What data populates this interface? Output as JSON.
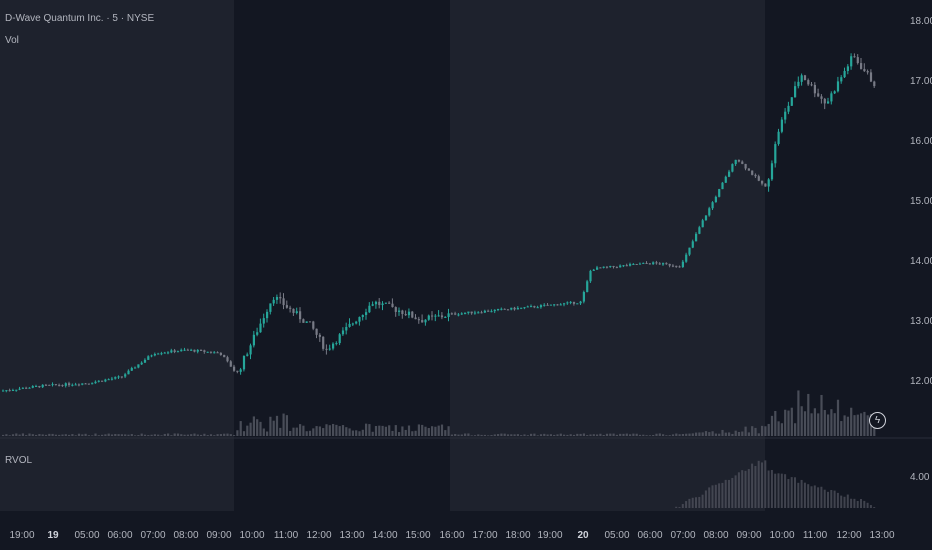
{
  "header": {
    "title": "D-Wave Quantum Inc. · 5 · NYSE",
    "volume_label": "Vol",
    "rvol_label": "RVOL",
    "alert_icon": "lightning-icon"
  },
  "colors": {
    "background": "#131722",
    "extended_session": "#1e222d",
    "up": "#26a69a",
    "down": "#787b86",
    "volume": "#50535e",
    "text": "#b2b5be"
  },
  "chart_data": {
    "type": "candlestick",
    "price_axis": {
      "ticks": [
        "18.00",
        "17.00",
        "16.00",
        "15.00",
        "14.00",
        "13.00",
        "12.00"
      ]
    },
    "rvol_axis": {
      "ticks": [
        "4.00"
      ]
    },
    "time_axis": {
      "ticks": [
        "19:00",
        "19",
        "05:00",
        "06:00",
        "07:00",
        "08:00",
        "09:00",
        "10:00",
        "11:00",
        "12:00",
        "13:00",
        "14:00",
        "15:00",
        "16:00",
        "17:00",
        "18:00",
        "19:00",
        "20",
        "05:00",
        "06:00",
        "07:00",
        "08:00",
        "09:00",
        "10:00",
        "11:00",
        "12:00",
        "13:00"
      ]
    },
    "sessions": [
      {
        "type": "extended",
        "from": "19:00",
        "to": "09:30"
      },
      {
        "type": "regular",
        "from": "09:30",
        "to": "16:00"
      },
      {
        "type": "extended",
        "from": "16:00",
        "to": "09:30"
      },
      {
        "type": "regular",
        "from": "09:30",
        "to": "13:00"
      }
    ],
    "price_path": [
      {
        "t": "19:00",
        "close": 11.82
      },
      {
        "t": "04:00",
        "close": 11.9
      },
      {
        "t": "05:00",
        "close": 11.95
      },
      {
        "t": "06:00",
        "close": 12.05
      },
      {
        "t": "07:00",
        "close": 12.45
      },
      {
        "t": "08:00",
        "close": 12.5
      },
      {
        "t": "09:00",
        "close": 12.45
      },
      {
        "t": "09:30",
        "close": 12.1
      },
      {
        "t": "10:30",
        "close": 13.4
      },
      {
        "t": "11:30",
        "close": 12.9
      },
      {
        "t": "12:00",
        "close": 12.5
      },
      {
        "t": "13:30",
        "close": 13.3
      },
      {
        "t": "14:30",
        "close": 13.15
      },
      {
        "t": "15:00",
        "close": 13.0
      },
      {
        "t": "16:00",
        "close": 13.1
      },
      {
        "t": "18:00",
        "close": 13.2
      },
      {
        "t": "19:30",
        "close": 13.3
      },
      {
        "t": "20:00",
        "close": 13.85
      },
      {
        "t": "06:00",
        "close": 13.95
      },
      {
        "t": "07:00",
        "close": 13.9
      },
      {
        "t": "07:30",
        "close": 14.6
      },
      {
        "t": "08:30",
        "close": 15.7
      },
      {
        "t": "09:30",
        "close": 15.2
      },
      {
        "t": "10:00",
        "close": 16.2
      },
      {
        "t": "10:30",
        "close": 17.1
      },
      {
        "t": "11:30",
        "close": 16.6
      },
      {
        "t": "12:00",
        "close": 17.4
      },
      {
        "t": "12:45",
        "close": 16.9
      }
    ]
  }
}
